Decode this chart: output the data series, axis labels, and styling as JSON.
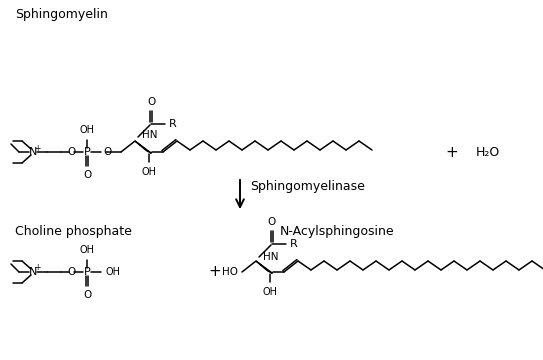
{
  "background_color": "#ffffff",
  "label_sphingomyelin": "Sphingomyelin",
  "label_choline_phosphate": "Choline phosphate",
  "label_n_acylsphingosine": "N-Acylsphingosine",
  "label_enzyme": "Sphingomyelinase",
  "label_h2o": "H₂O",
  "font_size_label": 9,
  "line_color": "#000000",
  "text_color": "#000000",
  "fig_width": 5.43,
  "fig_height": 3.6,
  "dpi": 100
}
